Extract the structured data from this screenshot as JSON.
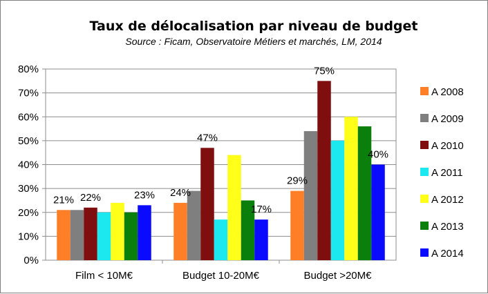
{
  "chart_data": {
    "type": "bar",
    "title": "Taux de délocalisation par niveau de budget",
    "subtitle": "Source : Ficam, Observatoire Métiers et marchés, LM, 2014",
    "categories": [
      "Film < 10M€",
      "Budget 10-20M€",
      "Budget >20M€"
    ],
    "ylim": [
      0,
      80
    ],
    "y_ticks": [
      "0%",
      "10%",
      "20%",
      "30%",
      "40%",
      "50%",
      "60%",
      "70%",
      "80%"
    ],
    "grid": true,
    "legend_position": "right",
    "series": [
      {
        "name": "A 2008",
        "color": "#ff7f27",
        "values": [
          21,
          24,
          29
        ]
      },
      {
        "name": "A 2009",
        "color": "#7f7f7f",
        "values": [
          21,
          29,
          54
        ]
      },
      {
        "name": "A 2010",
        "color": "#7f0f0f",
        "values": [
          22,
          47,
          75
        ]
      },
      {
        "name": "A 2011",
        "color": "#1ce8f0",
        "values": [
          20,
          17,
          50
        ]
      },
      {
        "name": "A 2012",
        "color": "#ffff19",
        "values": [
          24,
          44,
          60
        ]
      },
      {
        "name": "A 2013",
        "color": "#0b7f0b",
        "values": [
          20,
          25,
          56
        ]
      },
      {
        "name": "A 2014",
        "color": "#0a0aff",
        "values": [
          23,
          17,
          40
        ]
      }
    ],
    "data_labels": [
      {
        "category": 0,
        "series": 0,
        "text": "21%"
      },
      {
        "category": 0,
        "series": 2,
        "text": "22%"
      },
      {
        "category": 0,
        "series": 6,
        "text": "23%"
      },
      {
        "category": 1,
        "series": 0,
        "text": "24%"
      },
      {
        "category": 1,
        "series": 2,
        "text": "47%"
      },
      {
        "category": 1,
        "series": 6,
        "text": "17%"
      },
      {
        "category": 2,
        "series": 0,
        "text": "29%"
      },
      {
        "category": 2,
        "series": 2,
        "text": "75%"
      },
      {
        "category": 2,
        "series": 6,
        "text": "40%"
      }
    ]
  }
}
